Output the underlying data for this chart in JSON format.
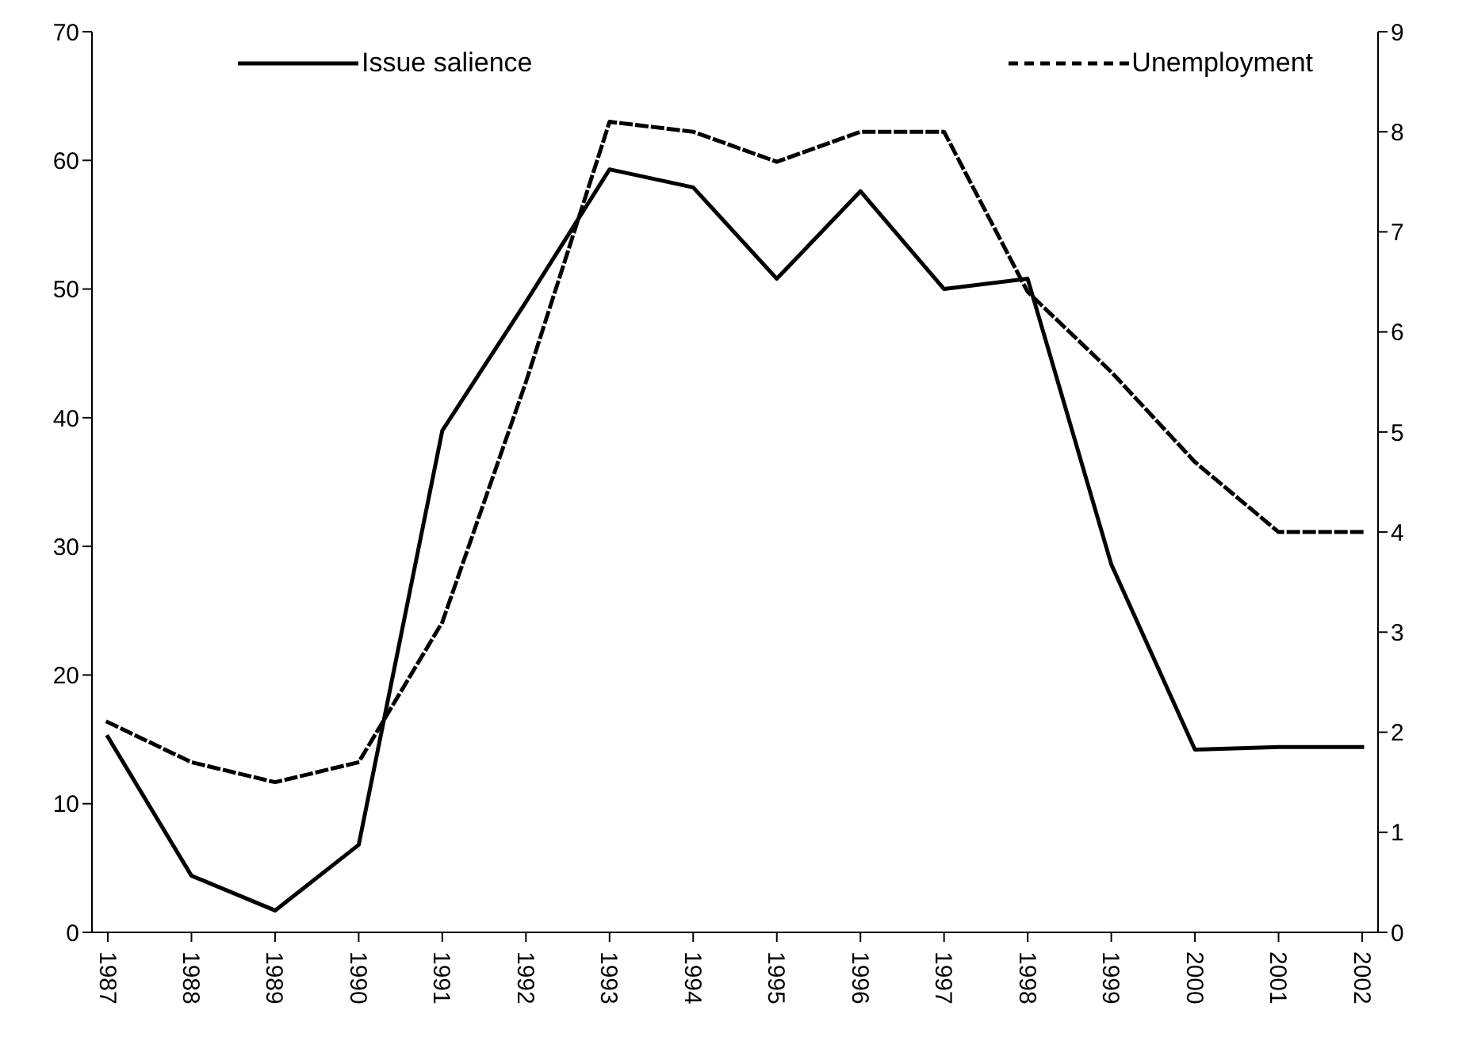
{
  "chart_data": {
    "type": "line",
    "categories": [
      "1987",
      "1988",
      "1989",
      "1990",
      "1991",
      "1992",
      "1993",
      "1994",
      "1995",
      "1996",
      "1997",
      "1998",
      "1999",
      "2000",
      "2001",
      "2002"
    ],
    "series": [
      {
        "name": "Issue salience",
        "color": "#000000",
        "line_style": "solid",
        "values": [
          15.2,
          4.4,
          1.7,
          6.8,
          39,
          49,
          59.3,
          57.9,
          50.8,
          57.6,
          50,
          50.8,
          28.6,
          14.2,
          14.4,
          14.4
        ]
      },
      {
        "name": "Unemployment",
        "color": "#000000",
        "line_style": "dashed",
        "axis": "y2",
        "values": [
          2.1,
          1.7,
          1.5,
          1.7,
          3.1,
          5.5,
          8.1,
          8.0,
          7.7,
          8.0,
          8.0,
          6.4,
          5.6,
          4.7,
          4.0,
          4.0
        ]
      }
    ],
    "ylim": [
      0,
      70
    ],
    "yticks": [
      0,
      10,
      20,
      30,
      40,
      50,
      60,
      70
    ],
    "y2lim": [
      0,
      9
    ],
    "y2ticks": [
      0,
      1,
      2,
      3,
      4,
      5,
      6,
      7,
      8,
      9
    ],
    "grid": false,
    "legend": "top",
    "marker": "none"
  }
}
